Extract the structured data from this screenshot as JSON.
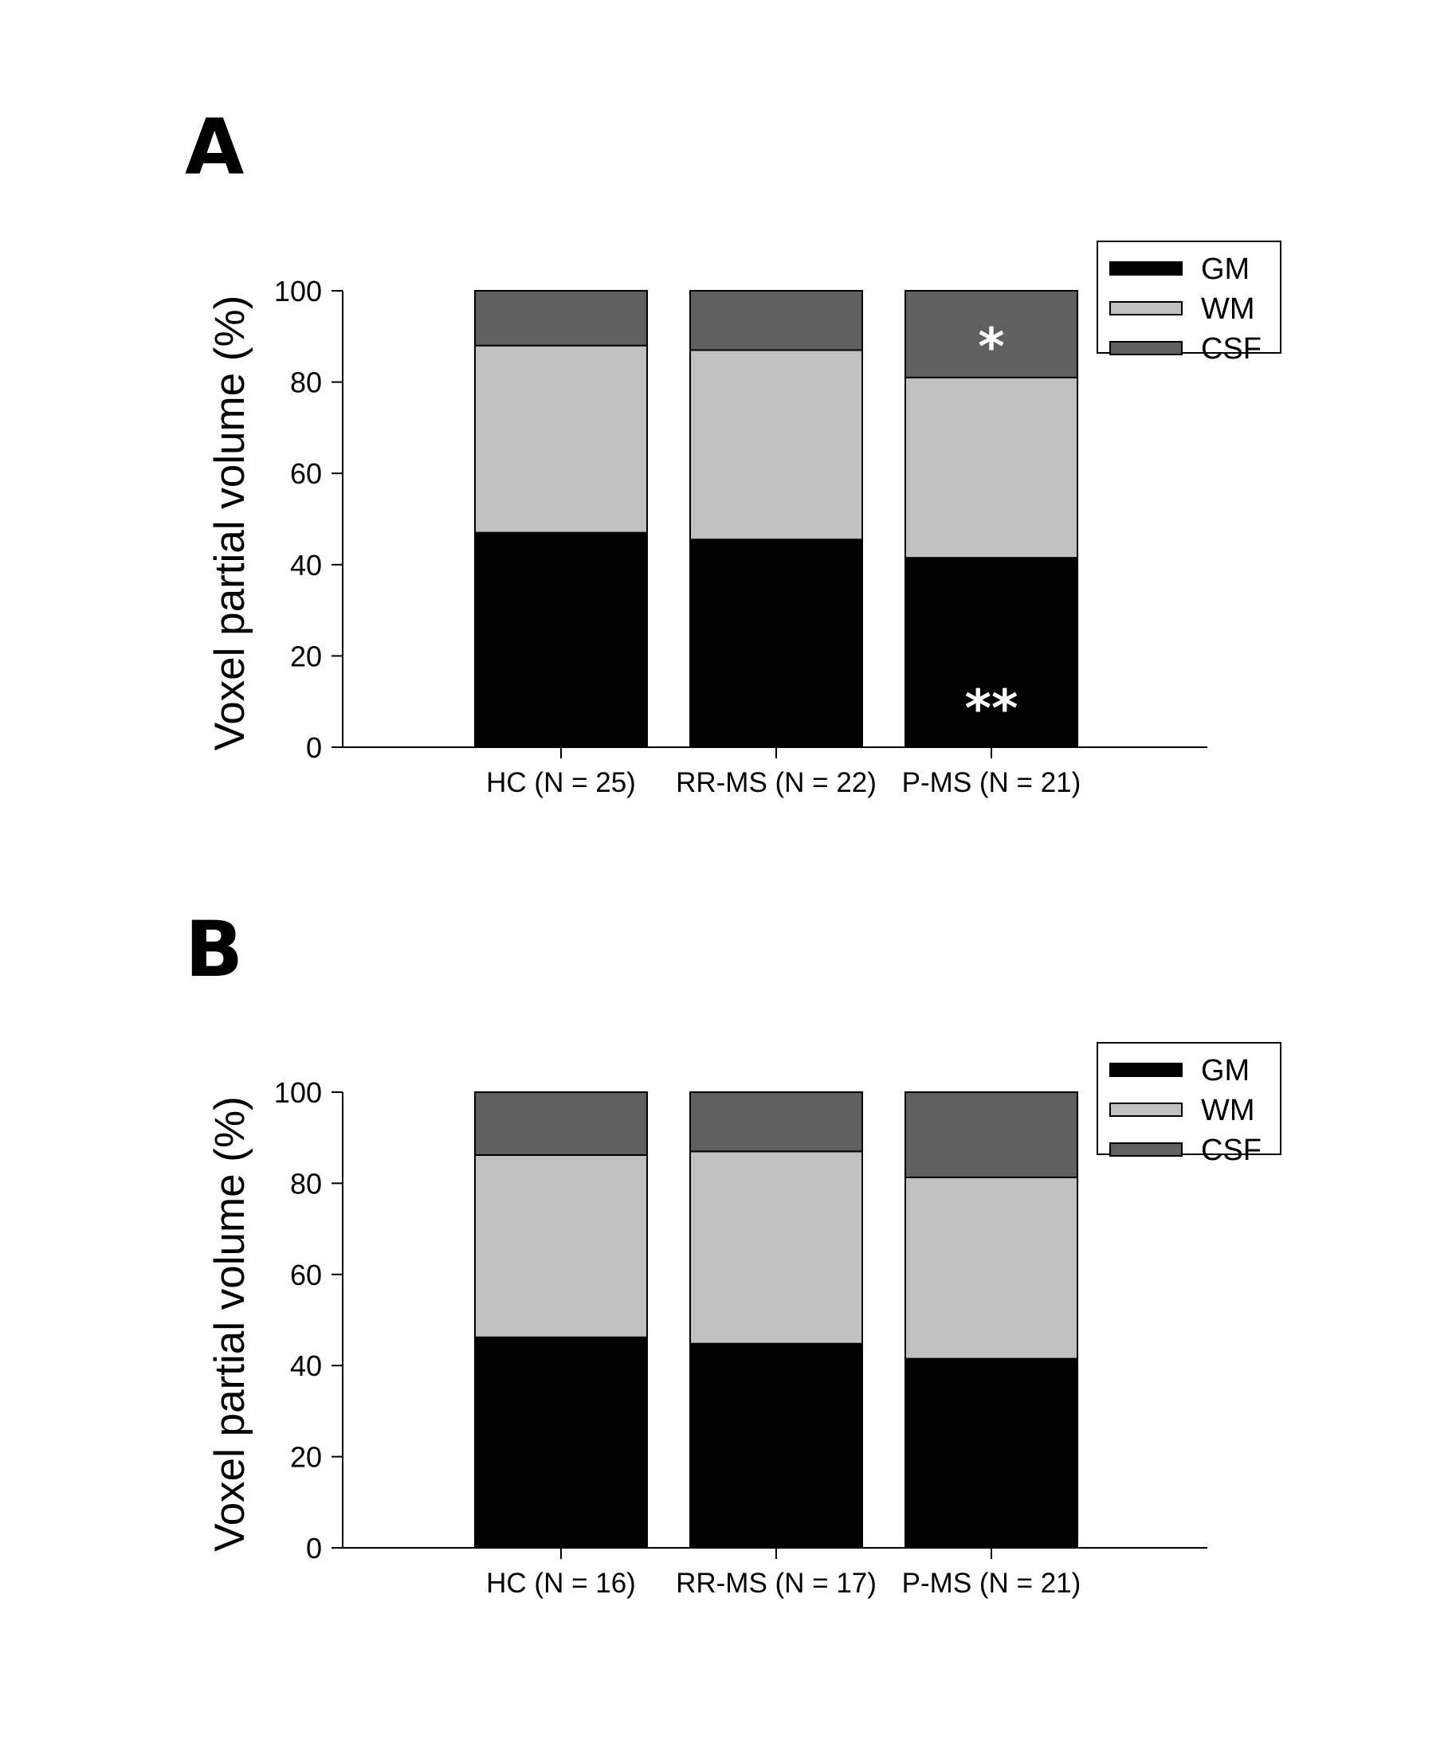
{
  "chart_data": [
    {
      "panel": "A",
      "type": "bar",
      "stacked": true,
      "categories": [
        "HC (N = 25)",
        "RR-MS (N = 22)",
        "P-MS (N = 21)"
      ],
      "series": [
        {
          "name": "GM",
          "values": [
            47,
            45.5,
            41.5
          ],
          "color": "#000000"
        },
        {
          "name": "WM",
          "values": [
            41,
            41.5,
            39.5
          ],
          "color": "#c0c0c0"
        },
        {
          "name": "CSF",
          "values": [
            12,
            13,
            19
          ],
          "color": "#606060"
        }
      ],
      "ylabel": "Voxel partial volume (%)",
      "ylim": [
        0,
        100
      ],
      "yticks": [
        "0",
        "20",
        "40",
        "60",
        "80",
        "100"
      ],
      "legend": [
        "GM",
        "WM",
        "CSF"
      ],
      "legend_position": "top-right",
      "annotations": [
        {
          "text": "*",
          "category": "P-MS (N = 21)",
          "series": "CSF"
        },
        {
          "text": "**",
          "category": "P-MS (N = 21)",
          "series": "GM"
        }
      ]
    },
    {
      "panel": "B",
      "type": "bar",
      "stacked": true,
      "categories": [
        "HC (N = 16)",
        "RR-MS (N = 17)",
        "P-MS (N = 21)"
      ],
      "series": [
        {
          "name": "GM",
          "values": [
            46.2,
            44.8,
            41.5
          ],
          "color": "#000000"
        },
        {
          "name": "WM",
          "values": [
            40,
            42.2,
            39.8
          ],
          "color": "#c0c0c0"
        },
        {
          "name": "CSF",
          "values": [
            13.8,
            13,
            18.7
          ],
          "color": "#606060"
        }
      ],
      "ylabel": "Voxel partial volume (%)",
      "ylim": [
        0,
        100
      ],
      "yticks": [
        "0",
        "20",
        "40",
        "60",
        "80",
        "100"
      ],
      "legend": [
        "GM",
        "WM",
        "CSF"
      ],
      "legend_position": "top-right",
      "annotations": []
    }
  ]
}
